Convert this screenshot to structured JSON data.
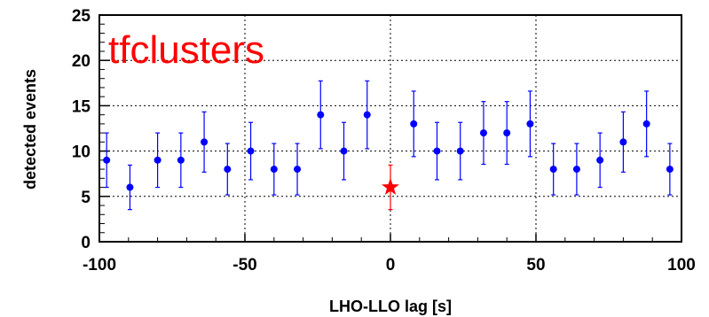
{
  "chart_data": {
    "type": "scatter",
    "title": "",
    "xlabel": "LHO-LLO lag [s]",
    "ylabel": "detected events",
    "xlim": [
      -100,
      100
    ],
    "ylim": [
      0,
      25
    ],
    "xticks": [
      "-100",
      "-50",
      "0",
      "50",
      "100"
    ],
    "yticks": [
      "0",
      "5",
      "10",
      "15",
      "20",
      "25"
    ],
    "grid": true,
    "annotation": "tfclusters",
    "annotation_color": "#ff0000",
    "series": [
      {
        "color": "#0000ff",
        "marker": "circle",
        "points": [
          {
            "x": -97.5,
            "y": 9,
            "err": 3.0
          },
          {
            "x": -89.5,
            "y": 6,
            "err": 2.45
          },
          {
            "x": -80,
            "y": 9,
            "err": 3.0
          },
          {
            "x": -72,
            "y": 9,
            "err": 3.0
          },
          {
            "x": -64,
            "y": 11,
            "err": 3.32
          },
          {
            "x": -56,
            "y": 8,
            "err": 2.83
          },
          {
            "x": -48,
            "y": 10,
            "err": 3.16
          },
          {
            "x": -40,
            "y": 8,
            "err": 2.83
          },
          {
            "x": -32,
            "y": 8,
            "err": 2.83
          },
          {
            "x": -24,
            "y": 14,
            "err": 3.74
          },
          {
            "x": -16,
            "y": 10,
            "err": 3.16
          },
          {
            "x": -8,
            "y": 14,
            "err": 3.74
          },
          {
            "x": 8,
            "y": 13,
            "err": 3.61
          },
          {
            "x": 16,
            "y": 10,
            "err": 3.16
          },
          {
            "x": 24,
            "y": 10,
            "err": 3.16
          },
          {
            "x": 32,
            "y": 12,
            "err": 3.46
          },
          {
            "x": 40,
            "y": 12,
            "err": 3.46
          },
          {
            "x": 48,
            "y": 13,
            "err": 3.61
          },
          {
            "x": 56,
            "y": 8,
            "err": 2.83
          },
          {
            "x": 64,
            "y": 8,
            "err": 2.83
          },
          {
            "x": 72,
            "y": 9,
            "err": 3.0
          },
          {
            "x": 80,
            "y": 11,
            "err": 3.32
          },
          {
            "x": 88,
            "y": 13,
            "err": 3.61
          },
          {
            "x": 96,
            "y": 8,
            "err": 2.83
          }
        ]
      },
      {
        "color": "#ff0000",
        "marker": "star",
        "points": [
          {
            "x": 0,
            "y": 6,
            "err": 2.45
          }
        ]
      }
    ]
  }
}
